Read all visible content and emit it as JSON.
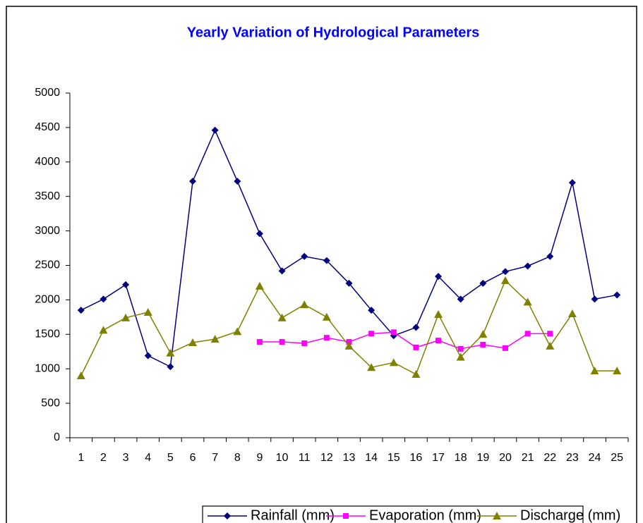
{
  "chart_data": {
    "type": "line",
    "title": "Yearly Variation of Hydrological Parameters",
    "categories": [
      "1",
      "2",
      "3",
      "4",
      "5",
      "6",
      "7",
      "8",
      "9",
      "10",
      "11",
      "12",
      "13",
      "14",
      "15",
      "16",
      "17",
      "18",
      "19",
      "20",
      "21",
      "22",
      "23",
      "24",
      "25"
    ],
    "series": [
      {
        "name": "Rainfall (mm)",
        "color": "#000080",
        "marker": "diamond",
        "values": [
          1850,
          2010,
          2220,
          1190,
          1030,
          3720,
          4460,
          3720,
          2960,
          2420,
          2630,
          2570,
          2240,
          1850,
          1480,
          1600,
          2340,
          2010,
          2240,
          2410,
          2490,
          2630,
          3700,
          2010,
          2070
        ]
      },
      {
        "name": "Evaporation (mm)",
        "color": "#ff00ff",
        "marker": "square",
        "values": [
          null,
          null,
          null,
          null,
          null,
          null,
          null,
          null,
          1390,
          1390,
          1370,
          1450,
          1390,
          1510,
          1530,
          1310,
          1410,
          1290,
          1350,
          1300,
          1510,
          1510,
          null,
          null,
          null
        ]
      },
      {
        "name": "Discharge (mm)",
        "color": "#808000",
        "marker": "triangle",
        "values": [
          900,
          1560,
          1740,
          1820,
          1230,
          1380,
          1430,
          1540,
          2200,
          1740,
          1930,
          1750,
          1330,
          1020,
          1090,
          920,
          1790,
          1170,
          1500,
          2280,
          1970,
          1330,
          1800,
          970,
          970
        ]
      }
    ],
    "ylim": [
      0,
      5000
    ],
    "yticks": [
      0,
      500,
      1000,
      1500,
      2000,
      2500,
      3000,
      3500,
      4000,
      4500,
      5000
    ],
    "grid": false,
    "legend": "bottom"
  }
}
